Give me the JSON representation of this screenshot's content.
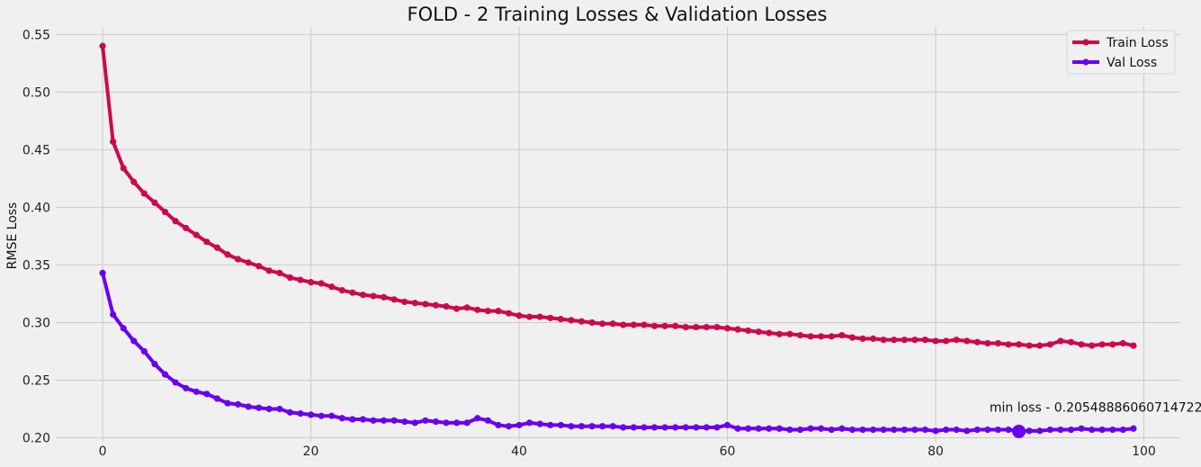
{
  "chart_data": {
    "type": "line",
    "title": "FOLD - 2 Training Losses & Validation Losses",
    "ylabel": "RMSE Loss",
    "xlabel": "",
    "xlim": [
      -4.5,
      103.5
    ],
    "ylim": [
      0.1965,
      0.5565
    ],
    "xticks": [
      0,
      20,
      40,
      60,
      80,
      100
    ],
    "yticks": [
      0.2,
      0.25,
      0.3,
      0.35,
      0.4,
      0.45,
      0.5,
      0.55
    ],
    "grid": true,
    "legend": "top-right",
    "series": [
      {
        "name": "Train Loss",
        "color": "#cc0a4a",
        "values": [
          0.54,
          0.457,
          0.434,
          0.422,
          0.412,
          0.404,
          0.396,
          0.388,
          0.382,
          0.376,
          0.37,
          0.365,
          0.359,
          0.355,
          0.352,
          0.349,
          0.345,
          0.343,
          0.339,
          0.337,
          0.335,
          0.334,
          0.331,
          0.328,
          0.326,
          0.324,
          0.323,
          0.322,
          0.32,
          0.318,
          0.317,
          0.316,
          0.315,
          0.314,
          0.312,
          0.313,
          0.311,
          0.31,
          0.31,
          0.308,
          0.306,
          0.305,
          0.305,
          0.304,
          0.303,
          0.302,
          0.301,
          0.3,
          0.299,
          0.299,
          0.298,
          0.298,
          0.298,
          0.297,
          0.297,
          0.297,
          0.296,
          0.296,
          0.296,
          0.296,
          0.295,
          0.294,
          0.293,
          0.292,
          0.291,
          0.29,
          0.29,
          0.289,
          0.288,
          0.288,
          0.288,
          0.289,
          0.287,
          0.286,
          0.286,
          0.285,
          0.285,
          0.285,
          0.285,
          0.285,
          0.284,
          0.284,
          0.285,
          0.284,
          0.283,
          0.282,
          0.282,
          0.281,
          0.281,
          0.28,
          0.28,
          0.281,
          0.284,
          0.283,
          0.281,
          0.28,
          0.281,
          0.281,
          0.282,
          0.28
        ]
      },
      {
        "name": "Val Loss",
        "color": "#6a00f0",
        "values": [
          0.343,
          0.307,
          0.295,
          0.284,
          0.275,
          0.264,
          0.255,
          0.248,
          0.243,
          0.24,
          0.238,
          0.234,
          0.23,
          0.229,
          0.227,
          0.226,
          0.225,
          0.225,
          0.222,
          0.221,
          0.22,
          0.219,
          0.219,
          0.217,
          0.216,
          0.216,
          0.215,
          0.215,
          0.215,
          0.214,
          0.213,
          0.215,
          0.214,
          0.213,
          0.213,
          0.213,
          0.217,
          0.215,
          0.211,
          0.21,
          0.211,
          0.213,
          0.212,
          0.211,
          0.211,
          0.21,
          0.21,
          0.21,
          0.21,
          0.21,
          0.209,
          0.209,
          0.209,
          0.209,
          0.209,
          0.209,
          0.209,
          0.209,
          0.209,
          0.209,
          0.211,
          0.208,
          0.208,
          0.208,
          0.208,
          0.208,
          0.207,
          0.207,
          0.208,
          0.208,
          0.207,
          0.208,
          0.207,
          0.207,
          0.207,
          0.207,
          0.207,
          0.207,
          0.207,
          0.207,
          0.206,
          0.207,
          0.207,
          0.206,
          0.207,
          0.207,
          0.207,
          0.207,
          0.206,
          0.206,
          0.206,
          0.207,
          0.207,
          0.207,
          0.208,
          0.207,
          0.207,
          0.207,
          0.207,
          0.208
        ]
      }
    ],
    "annotation": {
      "text": "min loss - 0.20548886060714722",
      "x": 88,
      "y": 0.20548886060714722
    }
  }
}
